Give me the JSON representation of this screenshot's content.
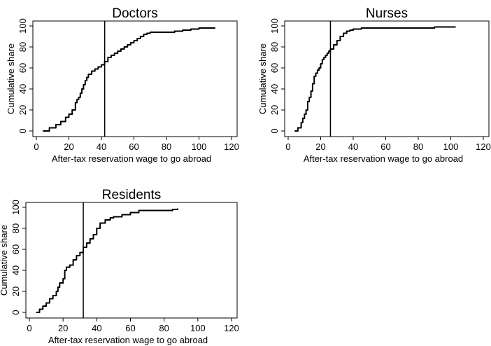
{
  "chart_data": [
    {
      "type": "line",
      "title": "Doctors",
      "xlabel": "After-tax reservation wage to go abroad",
      "ylabel": "Cumulative share",
      "xlim": [
        0,
        120
      ],
      "ylim": [
        0,
        100
      ],
      "xticks": [
        0,
        20,
        40,
        60,
        80,
        100,
        120
      ],
      "yticks": [
        0,
        20,
        40,
        60,
        80,
        100
      ],
      "grid": false,
      "vline": 42,
      "series": [
        {
          "x": [
            4,
            8,
            12,
            15,
            18,
            20,
            22,
            24,
            25,
            26,
            27,
            28,
            29,
            30,
            31,
            32,
            34,
            36,
            38,
            40,
            42,
            44,
            46,
            48,
            50,
            52,
            54,
            56,
            58,
            60,
            62,
            64,
            66,
            68,
            70,
            75,
            80,
            85,
            90,
            95,
            100,
            105,
            110
          ],
          "y": [
            0,
            3,
            6,
            9,
            13,
            16,
            20,
            27,
            30,
            32,
            36,
            40,
            44,
            48,
            51,
            54,
            57,
            59,
            61,
            63,
            66,
            70,
            72,
            74,
            76,
            78,
            80,
            82,
            84,
            86,
            88,
            90,
            92,
            93,
            94,
            94,
            94,
            95,
            96,
            97,
            98,
            98,
            98
          ]
        }
      ]
    },
    {
      "type": "line",
      "title": "Nurses",
      "xlabel": "After-tax reservation wage to go abroad",
      "ylabel": "Cumulative share",
      "xlim": [
        0,
        120
      ],
      "ylim": [
        0,
        100
      ],
      "xticks": [
        0,
        20,
        40,
        60,
        80,
        100,
        120
      ],
      "yticks": [
        0,
        20,
        40,
        60,
        80,
        100
      ],
      "grid": false,
      "vline": 26,
      "series": [
        {
          "x": [
            4,
            6,
            8,
            9,
            10,
            11,
            12,
            13,
            14,
            15,
            16,
            17,
            18,
            19,
            20,
            21,
            22,
            23,
            24,
            25,
            26,
            28,
            30,
            32,
            34,
            36,
            38,
            40,
            45,
            50,
            60,
            70,
            80,
            90,
            100,
            103
          ],
          "y": [
            0,
            3,
            8,
            12,
            16,
            20,
            28,
            32,
            38,
            45,
            52,
            55,
            58,
            60,
            64,
            68,
            70,
            72,
            74,
            76,
            78,
            82,
            86,
            90,
            93,
            95,
            96,
            97,
            98,
            98,
            98,
            98,
            98,
            99,
            99,
            99
          ]
        }
      ]
    },
    {
      "type": "line",
      "title": "Residents",
      "xlabel": "After-tax reservation wage to go abroad",
      "ylabel": "Cumulative share",
      "xlim": [
        0,
        120
      ],
      "ylim": [
        0,
        100
      ],
      "xticks": [
        0,
        20,
        40,
        60,
        80,
        100,
        120
      ],
      "yticks": [
        0,
        20,
        40,
        60,
        80,
        100
      ],
      "grid": false,
      "vline": 32,
      "series": [
        {
          "x": [
            4,
            6,
            8,
            10,
            12,
            14,
            16,
            17,
            18,
            20,
            21,
            22,
            24,
            26,
            28,
            30,
            32,
            34,
            36,
            38,
            40,
            42,
            45,
            48,
            50,
            55,
            60,
            65,
            70,
            75,
            80,
            85,
            88
          ],
          "y": [
            0,
            3,
            6,
            9,
            13,
            16,
            20,
            24,
            28,
            32,
            40,
            43,
            45,
            50,
            54,
            57,
            62,
            66,
            70,
            74,
            80,
            85,
            88,
            90,
            91,
            93,
            95,
            97,
            97,
            97,
            97,
            98,
            99
          ]
        }
      ]
    }
  ]
}
